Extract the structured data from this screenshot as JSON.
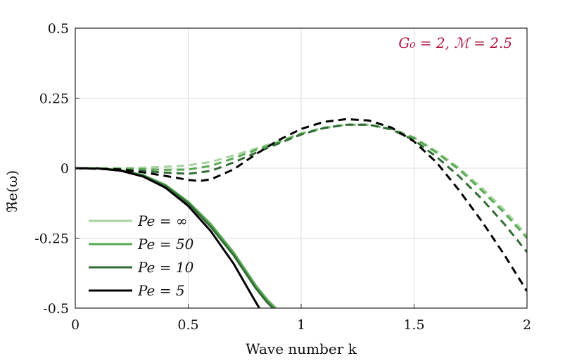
{
  "chart_data": {
    "type": "line",
    "xlabel": "Wave number k",
    "ylabel": "ℜe(ω)",
    "xlim": [
      0,
      2
    ],
    "ylim": [
      -0.5,
      0.5
    ],
    "x_ticks": [
      0,
      0.5,
      1,
      1.5,
      2
    ],
    "x_tick_labels": [
      "0",
      "0.5",
      "1",
      "1.5",
      "2"
    ],
    "y_ticks": [
      -0.5,
      -0.25,
      0,
      0.25,
      0.5
    ],
    "y_tick_labels": [
      "-0.5",
      "-0.25",
      "0",
      "0.25",
      "0.5"
    ],
    "grid": true,
    "annotation": "G₀ = 2, ℳ = 2.5",
    "legend": {
      "placement": "bottom-left",
      "entries": [
        "Pe = ∞",
        "Pe = 50",
        "Pe = 10",
        "Pe = 5"
      ]
    },
    "colors": {
      "pe_inf": "#a8d3a0",
      "pe_50": "#5aaa55",
      "pe_10": "#336b36",
      "pe_5": "#000000",
      "annotation": "#b0153d",
      "grid": "#dcdcdc"
    },
    "series": [
      {
        "name": "Pe = ∞ (solid)",
        "style": "solid",
        "color_key": "pe_inf",
        "x": [
          0,
          0.1,
          0.2,
          0.3,
          0.4,
          0.5,
          0.6,
          0.7,
          0.75,
          0.8,
          0.85,
          0.89
        ],
        "y": [
          0,
          -0.001,
          -0.007,
          -0.025,
          -0.06,
          -0.12,
          -0.2,
          -0.3,
          -0.36,
          -0.42,
          -0.47,
          -0.5
        ]
      },
      {
        "name": "Pe = 50 (solid)",
        "style": "solid",
        "color_key": "pe_50",
        "x": [
          0,
          0.1,
          0.2,
          0.3,
          0.4,
          0.5,
          0.6,
          0.7,
          0.75,
          0.8,
          0.85,
          0.885
        ],
        "y": [
          0,
          -0.001,
          -0.007,
          -0.025,
          -0.06,
          -0.12,
          -0.2,
          -0.3,
          -0.36,
          -0.42,
          -0.47,
          -0.5
        ]
      },
      {
        "name": "Pe = 10 (solid)",
        "style": "solid",
        "color_key": "pe_10",
        "x": [
          0,
          0.1,
          0.2,
          0.3,
          0.4,
          0.5,
          0.6,
          0.7,
          0.75,
          0.8,
          0.85,
          0.875
        ],
        "y": [
          0,
          -0.001,
          -0.008,
          -0.027,
          -0.065,
          -0.125,
          -0.21,
          -0.31,
          -0.37,
          -0.43,
          -0.48,
          -0.5
        ]
      },
      {
        "name": "Pe = 5 (solid)",
        "style": "solid",
        "color_key": "pe_5",
        "x": [
          0,
          0.1,
          0.2,
          0.3,
          0.4,
          0.5,
          0.6,
          0.7,
          0.75,
          0.8,
          0.815
        ],
        "y": [
          0,
          -0.001,
          -0.009,
          -0.03,
          -0.07,
          -0.135,
          -0.225,
          -0.34,
          -0.41,
          -0.48,
          -0.5
        ]
      },
      {
        "name": "Pe = ∞ (dashed)",
        "style": "dashed",
        "color_key": "pe_inf",
        "x": [
          0,
          0.2,
          0.3,
          0.4,
          0.5,
          0.6,
          0.7,
          0.8,
          0.9,
          1.0,
          1.1,
          1.2,
          1.3,
          1.4,
          1.5,
          1.6,
          1.7,
          1.8,
          1.9,
          2.0
        ],
        "y": [
          0,
          0,
          0.002,
          0.005,
          0.01,
          0.022,
          0.045,
          0.07,
          0.095,
          0.125,
          0.145,
          0.155,
          0.155,
          0.14,
          0.11,
          0.06,
          0.0,
          -0.07,
          -0.15,
          -0.24
        ]
      },
      {
        "name": "Pe = 50 (dashed)",
        "style": "dashed",
        "color_key": "pe_50",
        "x": [
          0,
          0.2,
          0.3,
          0.4,
          0.5,
          0.6,
          0.7,
          0.8,
          0.9,
          1.0,
          1.1,
          1.2,
          1.3,
          1.4,
          1.5,
          1.6,
          1.7,
          1.8,
          1.9,
          2.0
        ],
        "y": [
          0,
          -0.002,
          -0.004,
          -0.006,
          -0.005,
          0.008,
          0.035,
          0.065,
          0.092,
          0.122,
          0.143,
          0.155,
          0.155,
          0.14,
          0.108,
          0.055,
          -0.005,
          -0.08,
          -0.16,
          -0.25
        ]
      },
      {
        "name": "Pe = 10 (dashed)",
        "style": "dashed",
        "color_key": "pe_10",
        "x": [
          0,
          0.2,
          0.3,
          0.4,
          0.5,
          0.6,
          0.7,
          0.8,
          0.9,
          1.0,
          1.1,
          1.2,
          1.3,
          1.4,
          1.5,
          1.6,
          1.7,
          1.8,
          1.9,
          2.0
        ],
        "y": [
          0,
          -0.004,
          -0.01,
          -0.016,
          -0.02,
          -0.01,
          0.02,
          0.055,
          0.088,
          0.12,
          0.143,
          0.155,
          0.155,
          0.138,
          0.1,
          0.04,
          -0.03,
          -0.11,
          -0.2,
          -0.3
        ]
      },
      {
        "name": "Pe = 5 (dashed)",
        "style": "dashed",
        "color_key": "pe_5",
        "x": [
          0,
          0.2,
          0.3,
          0.4,
          0.5,
          0.55,
          0.6,
          0.7,
          0.8,
          0.9,
          1.0,
          1.1,
          1.2,
          1.3,
          1.4,
          1.5,
          1.6,
          1.7,
          1.8,
          1.9,
          2.0
        ],
        "y": [
          0,
          -0.005,
          -0.015,
          -0.028,
          -0.042,
          -0.046,
          -0.04,
          -0.005,
          0.05,
          0.1,
          0.14,
          0.165,
          0.175,
          0.17,
          0.145,
          0.095,
          0.02,
          -0.08,
          -0.19,
          -0.31,
          -0.44
        ]
      }
    ]
  }
}
